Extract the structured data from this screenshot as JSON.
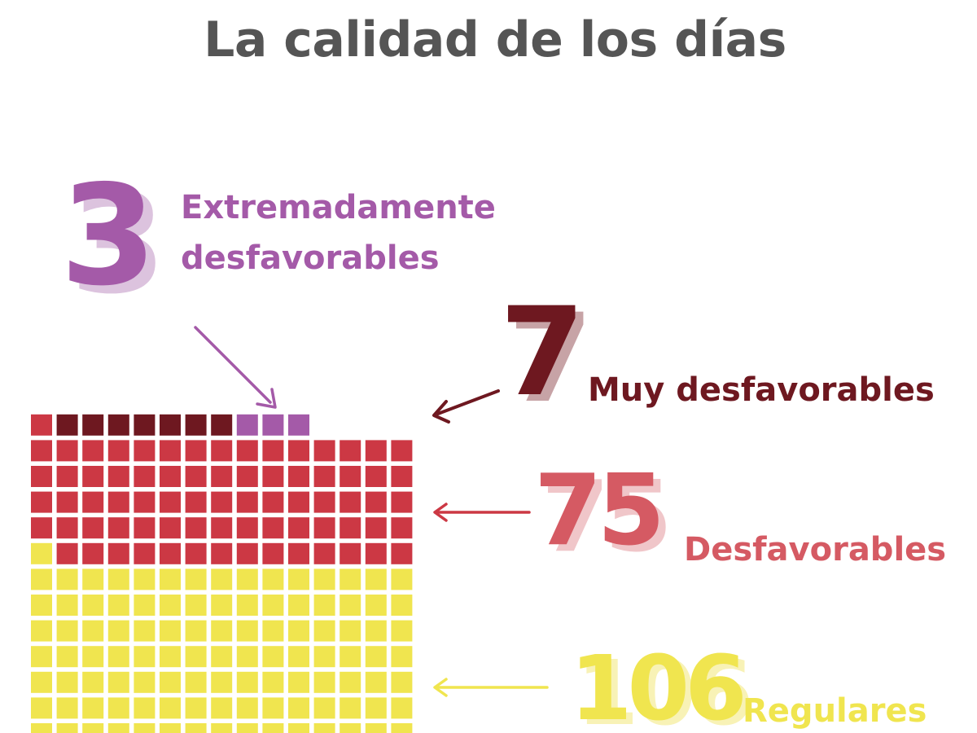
{
  "title": "La calidad de los días",
  "chart_data": {
    "type": "waffle",
    "columns": 15,
    "fill_order": "bottom-to-top, left-to-right",
    "categories": [
      {
        "label": "Regulares",
        "value": 106,
        "value_text": "106",
        "color": "#f0e54f"
      },
      {
        "label": "Desfavorables",
        "value": 75,
        "value_text": "75",
        "color": "#cc3844"
      },
      {
        "label": "Muy desfavorables",
        "value": 7,
        "value_text": "7",
        "color": "#6e1820"
      },
      {
        "label": "Extremadamente desfavorables",
        "value": 3,
        "value_text": "3",
        "color": "#a45aa8"
      }
    ]
  },
  "labels": {
    "extreme_line1": "Extremadamente",
    "extreme_line2": "desfavorables"
  }
}
